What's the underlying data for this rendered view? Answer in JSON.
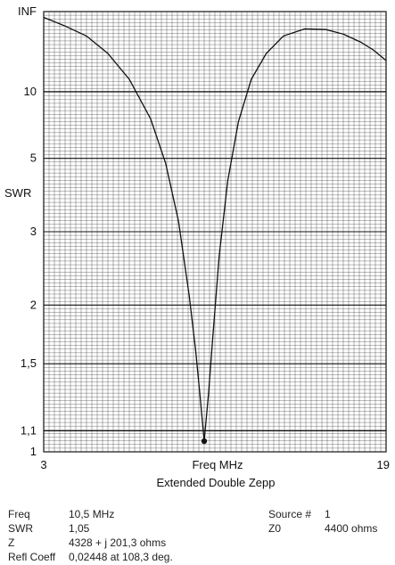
{
  "chart_data": {
    "type": "line",
    "title": "Extended Double Zepp",
    "xlabel": "Freq MHz",
    "ylabel": "SWR",
    "xlim": [
      3,
      19
    ],
    "y_scale": "reflection-coefficient",
    "y_tick_labels": [
      "INF",
      "10",
      "5",
      "3",
      "2",
      "1,5",
      "1,1",
      "1"
    ],
    "y_tick_values": [
      null,
      10,
      5,
      3,
      2,
      1.5,
      1.1,
      1
    ],
    "x_tick_labels": [
      "3",
      "Freq MHz",
      "19"
    ],
    "grid": true,
    "series": [
      {
        "x": [
          3,
          4,
          5,
          6,
          7,
          8,
          8.7,
          9.3,
          9.8,
          10.1,
          10.3,
          10.5,
          10.7,
          10.9,
          11.2,
          11.6,
          12.1,
          12.7,
          13.4,
          14.2,
          15.2,
          16.2,
          17.0,
          17.8,
          18.4,
          19
        ],
        "y": [
          150,
          60,
          35,
          20,
          12,
          7.2,
          4.8,
          3.2,
          2.1,
          1.6,
          1.3,
          1.05,
          1.3,
          1.7,
          2.6,
          4.2,
          7.0,
          12,
          20,
          35,
          50,
          48,
          38,
          28,
          22,
          17
        ]
      }
    ],
    "marker": {
      "x": 10.5,
      "y": 1.05
    }
  },
  "info": {
    "freq_label": "Freq",
    "freq_value": "10,5 MHz",
    "swr_label": "SWR",
    "swr_value": "1,05",
    "z_label": "Z",
    "z_value": "4328 + j 201,3 ohms",
    "refl_label": "Refl Coeff",
    "refl_value": "0,02448 at 108,3 deg.",
    "source_label": "Source #",
    "source_value": "1",
    "z0_label": "Z0",
    "z0_value": "4400 ohms"
  }
}
